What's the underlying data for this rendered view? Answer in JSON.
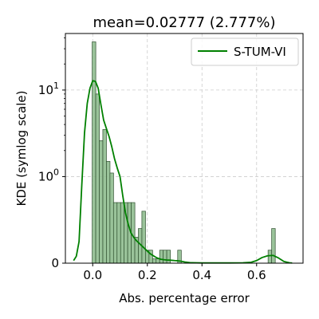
{
  "chart_data": {
    "type": "histogram+kde",
    "title": "mean=0.02777 (2.777%)",
    "xlabel": "Abs. percentage error",
    "ylabel": "KDE (symlog scale)",
    "y_scale": "symlog",
    "xlim": [
      -0.1,
      0.77
    ],
    "ylim": [
      0,
      45
    ],
    "x_ticks": [
      0.0,
      0.2,
      0.4,
      0.6
    ],
    "x_tick_labels": [
      "0.0",
      "0.2",
      "0.4",
      "0.6"
    ],
    "y_ticks": [
      0,
      1,
      10
    ],
    "grid": true,
    "legend_position": "top-right",
    "series": [
      {
        "name": "S-TUM-VI",
        "color": "#008000",
        "kind": "kde"
      }
    ],
    "bar_color": "#8fbc8f",
    "bin_width": 0.0133,
    "histogram": {
      "bin_starts": [
        -0.002,
        0.011,
        0.024,
        0.037,
        0.05,
        0.063,
        0.076,
        0.089,
        0.102,
        0.115,
        0.128,
        0.141,
        0.154,
        0.167,
        0.18,
        0.193,
        0.206,
        0.219,
        0.232,
        0.245,
        0.258,
        0.271,
        0.311,
        0.642,
        0.655
      ],
      "heights": [
        36,
        9,
        2.6,
        3.5,
        1.5,
        1.1,
        0.7,
        0.7,
        0.7,
        0.7,
        0.7,
        0.7,
        0.3,
        0.4,
        0.6,
        0.15,
        0.15,
        0.05,
        0.05,
        0.15,
        0.15,
        0.15,
        0.15,
        0.15,
        0.4
      ]
    },
    "kde": {
      "x": [
        -0.07,
        -0.06,
        -0.05,
        -0.04,
        -0.03,
        -0.02,
        -0.01,
        0.0,
        0.01,
        0.02,
        0.03,
        0.04,
        0.05,
        0.06,
        0.07,
        0.08,
        0.09,
        0.1,
        0.11,
        0.12,
        0.13,
        0.14,
        0.15,
        0.16,
        0.17,
        0.18,
        0.19,
        0.2,
        0.21,
        0.22,
        0.23,
        0.24,
        0.25,
        0.26,
        0.27,
        0.28,
        0.29,
        0.3,
        0.31,
        0.32,
        0.33,
        0.34,
        0.36,
        0.4,
        0.45,
        0.5,
        0.55,
        0.58,
        0.6,
        0.62,
        0.64,
        0.66,
        0.68,
        0.7,
        0.72,
        0.73
      ],
      "y": [
        0.03,
        0.08,
        0.25,
        0.9,
        3.2,
        7.0,
        10.5,
        12.8,
        12.6,
        10.5,
        6.8,
        4.5,
        3.6,
        2.9,
        2.2,
        1.6,
        1.25,
        1.0,
        0.78,
        0.58,
        0.45,
        0.35,
        0.3,
        0.26,
        0.23,
        0.2,
        0.17,
        0.14,
        0.11,
        0.09,
        0.07,
        0.055,
        0.045,
        0.04,
        0.037,
        0.035,
        0.033,
        0.03,
        0.028,
        0.024,
        0.018,
        0.012,
        0.005,
        0.003,
        0.003,
        0.003,
        0.004,
        0.01,
        0.03,
        0.065,
        0.085,
        0.09,
        0.06,
        0.02,
        0.005,
        0.002
      ]
    }
  }
}
